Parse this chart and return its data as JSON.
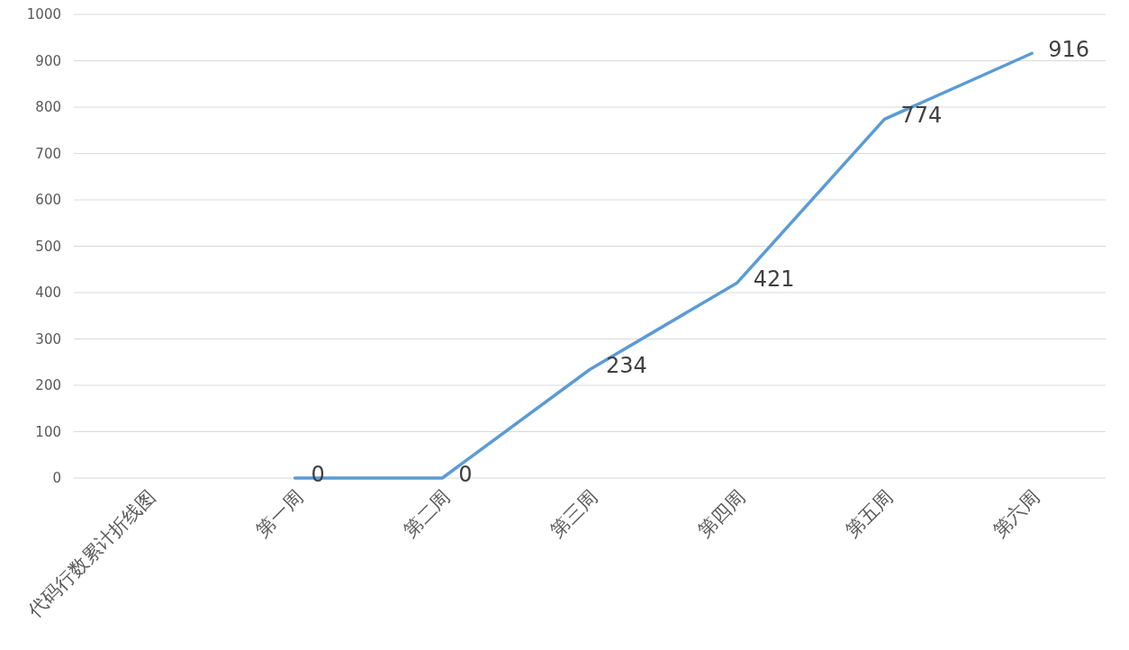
{
  "chart_data": {
    "type": "line",
    "categories": [
      "代码行数累计折线图",
      "第一周",
      "第二周",
      "第三周",
      "第四周",
      "第五周",
      "第六周"
    ],
    "series": [
      {
        "color": "#5b9bd5",
        "values": [
          null,
          0,
          0,
          234,
          421,
          774,
          916
        ]
      }
    ],
    "ylim": [
      0,
      1000
    ],
    "yticks": [
      0,
      100,
      200,
      300,
      400,
      500,
      600,
      700,
      800,
      900,
      1000
    ],
    "grid": "y",
    "data_labels": true,
    "marker": "none",
    "line_style": "solid"
  }
}
